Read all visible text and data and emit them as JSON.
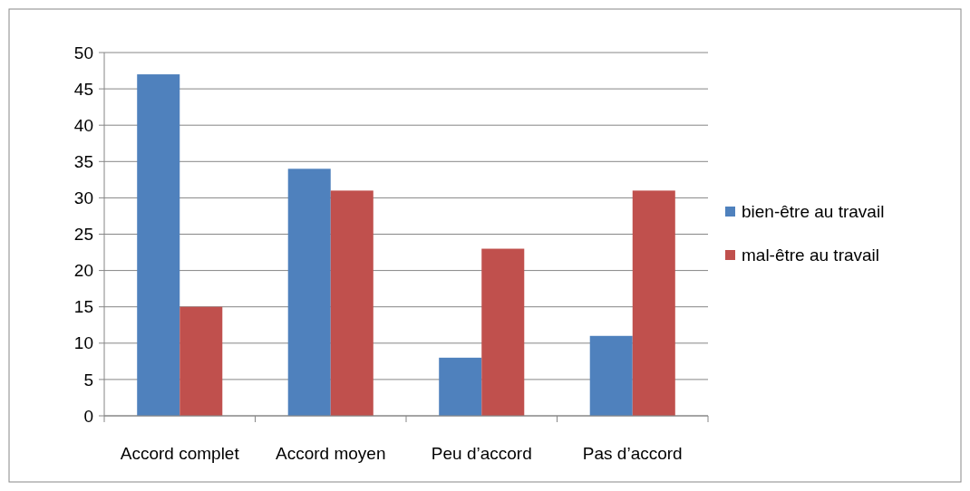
{
  "chart_data": {
    "type": "bar",
    "categories": [
      "Accord complet",
      "Accord moyen",
      "Peu d’accord",
      "Pas d’accord"
    ],
    "series": [
      {
        "name": "bien-être au travail",
        "color": "#4f81bd",
        "values": [
          47,
          34,
          8,
          11
        ]
      },
      {
        "name": "mal-être au travail",
        "color": "#c0504d",
        "values": [
          15,
          31,
          23,
          31
        ]
      }
    ],
    "ylim": [
      0,
      50
    ],
    "yticks": [
      0,
      5,
      10,
      15,
      20,
      25,
      30,
      35,
      40,
      45,
      50
    ],
    "grid": "y",
    "legend": "right"
  }
}
